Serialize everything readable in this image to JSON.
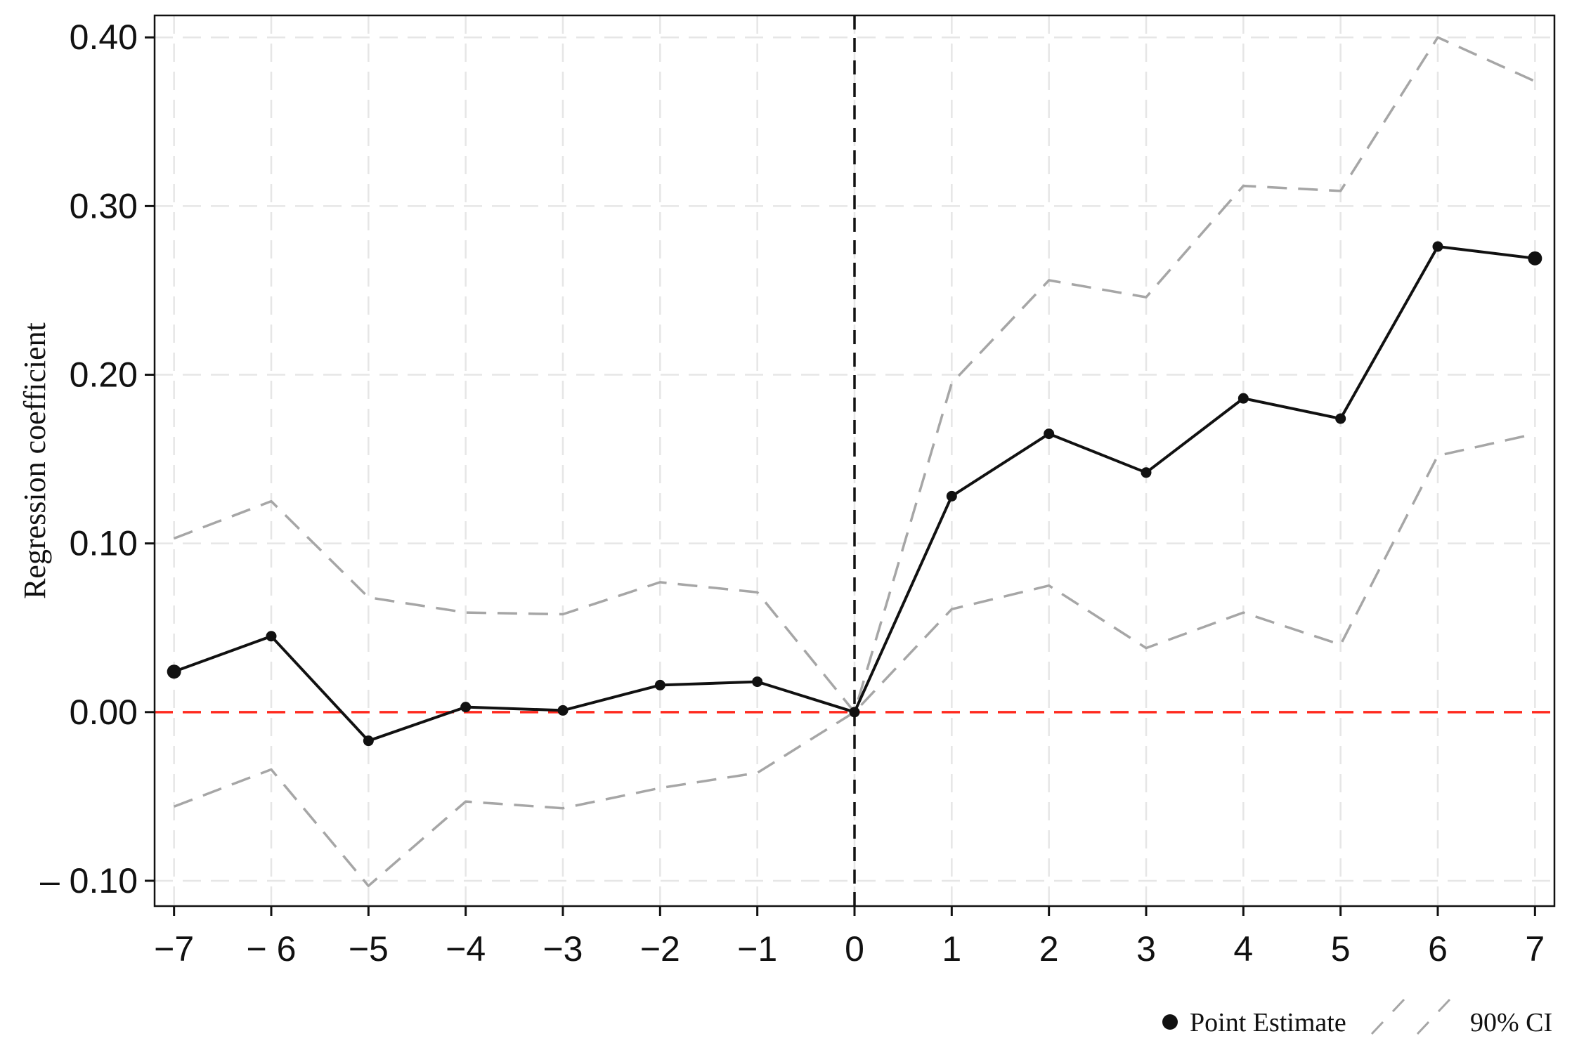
{
  "chart_data": {
    "type": "line",
    "title": "",
    "xlabel": "",
    "ylabel": "Regression coefficient",
    "x": [
      -7,
      -6,
      -5,
      -4,
      -3,
      -2,
      -1,
      0,
      1,
      2,
      3,
      4,
      5,
      6,
      7
    ],
    "x_tick_labels": [
      "−7",
      "− 6",
      "−5",
      "−4",
      "−3",
      "−2",
      "−1",
      "0",
      "1",
      "2",
      "3",
      "4",
      "5",
      "6",
      "7"
    ],
    "y_ticks": [
      -0.1,
      0.0,
      0.1,
      0.2,
      0.3,
      0.4
    ],
    "y_tick_labels": [
      "– 0.10",
      "0.00",
      "0.10",
      "0.20",
      "0.30",
      "0.40"
    ],
    "xlim": [
      -7.2,
      7.2
    ],
    "ylim": [
      -0.115,
      0.413
    ],
    "grid": true,
    "series": [
      {
        "name": "Point Estimate",
        "role": "point",
        "color": "#111111",
        "values": [
          0.024,
          0.045,
          -0.017,
          0.003,
          0.001,
          0.016,
          0.018,
          0.0,
          0.128,
          0.165,
          0.142,
          0.186,
          0.174,
          0.276,
          0.269
        ]
      },
      {
        "name": "90% CI",
        "role": "ci-upper",
        "color": "#a6a6a6",
        "values": [
          0.103,
          0.125,
          0.068,
          0.059,
          0.058,
          0.077,
          0.071,
          0.0,
          0.195,
          0.256,
          0.246,
          0.312,
          0.309,
          0.4,
          0.374
        ]
      },
      {
        "name": "",
        "role": "ci-lower",
        "color": "#a6a6a6",
        "values": [
          -0.056,
          -0.034,
          -0.103,
          -0.053,
          -0.057,
          -0.045,
          -0.036,
          0.0,
          0.061,
          0.075,
          0.038,
          0.059,
          0.04,
          0.152,
          0.165
        ]
      }
    ],
    "reference_lines": {
      "horizontal_y": 0,
      "horizontal_color": "#ff2a1f",
      "vertical_x": 0,
      "vertical_color": "#111111"
    },
    "legend": {
      "placement": "bottom-right",
      "items": [
        {
          "label": "Point Estimate",
          "marker": "dot"
        },
        {
          "label": "90% CI",
          "marker": "dashed"
        }
      ]
    }
  }
}
